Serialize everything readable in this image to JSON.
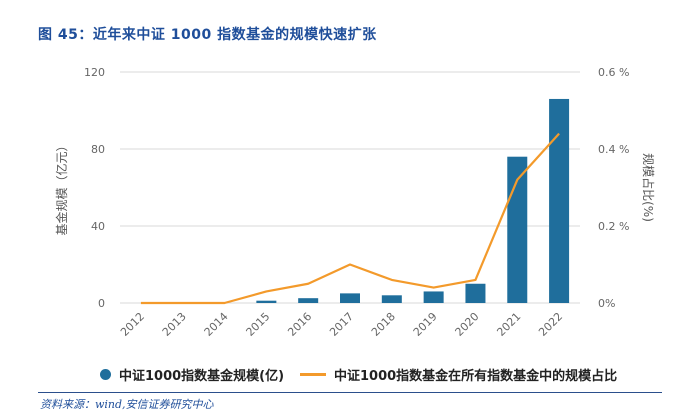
{
  "figure": {
    "title": "图 45：近年来中证 1000 指数基金的规模快速扩张",
    "source": "资料来源：wind,安信证券研究中心"
  },
  "chart_data": {
    "type": "bar",
    "categories": [
      "2012",
      "2013",
      "2014",
      "2015",
      "2016",
      "2017",
      "2018",
      "2019",
      "2020",
      "2021",
      "2022"
    ],
    "series": [
      {
        "name": "中证1000指数基金规模(亿)",
        "type": "bar",
        "axis": "left",
        "color": "#1f6e9c",
        "values": [
          0,
          0,
          0,
          1.2,
          2.5,
          5,
          4,
          6,
          10,
          76,
          106
        ]
      },
      {
        "name": "中证1000指数基金在所有指数基金中的规模占比",
        "type": "line",
        "axis": "right",
        "color": "#f39a2b",
        "values": [
          0,
          0,
          0,
          0.03,
          0.05,
          0.1,
          0.06,
          0.04,
          0.06,
          0.32,
          0.44
        ]
      }
    ],
    "ylabel": "基金规模（亿元）",
    "ylabel_right": "规模占比(%)",
    "ylim": [
      0,
      120
    ],
    "yticks": [
      "0",
      "40",
      "80",
      "120"
    ],
    "ylim_right": [
      0,
      0.6
    ],
    "yticks_right": [
      "0%",
      "0.2 %",
      "0.4 %",
      "0.6 %"
    ],
    "grid": "horizontal",
    "legend": "bottom"
  }
}
